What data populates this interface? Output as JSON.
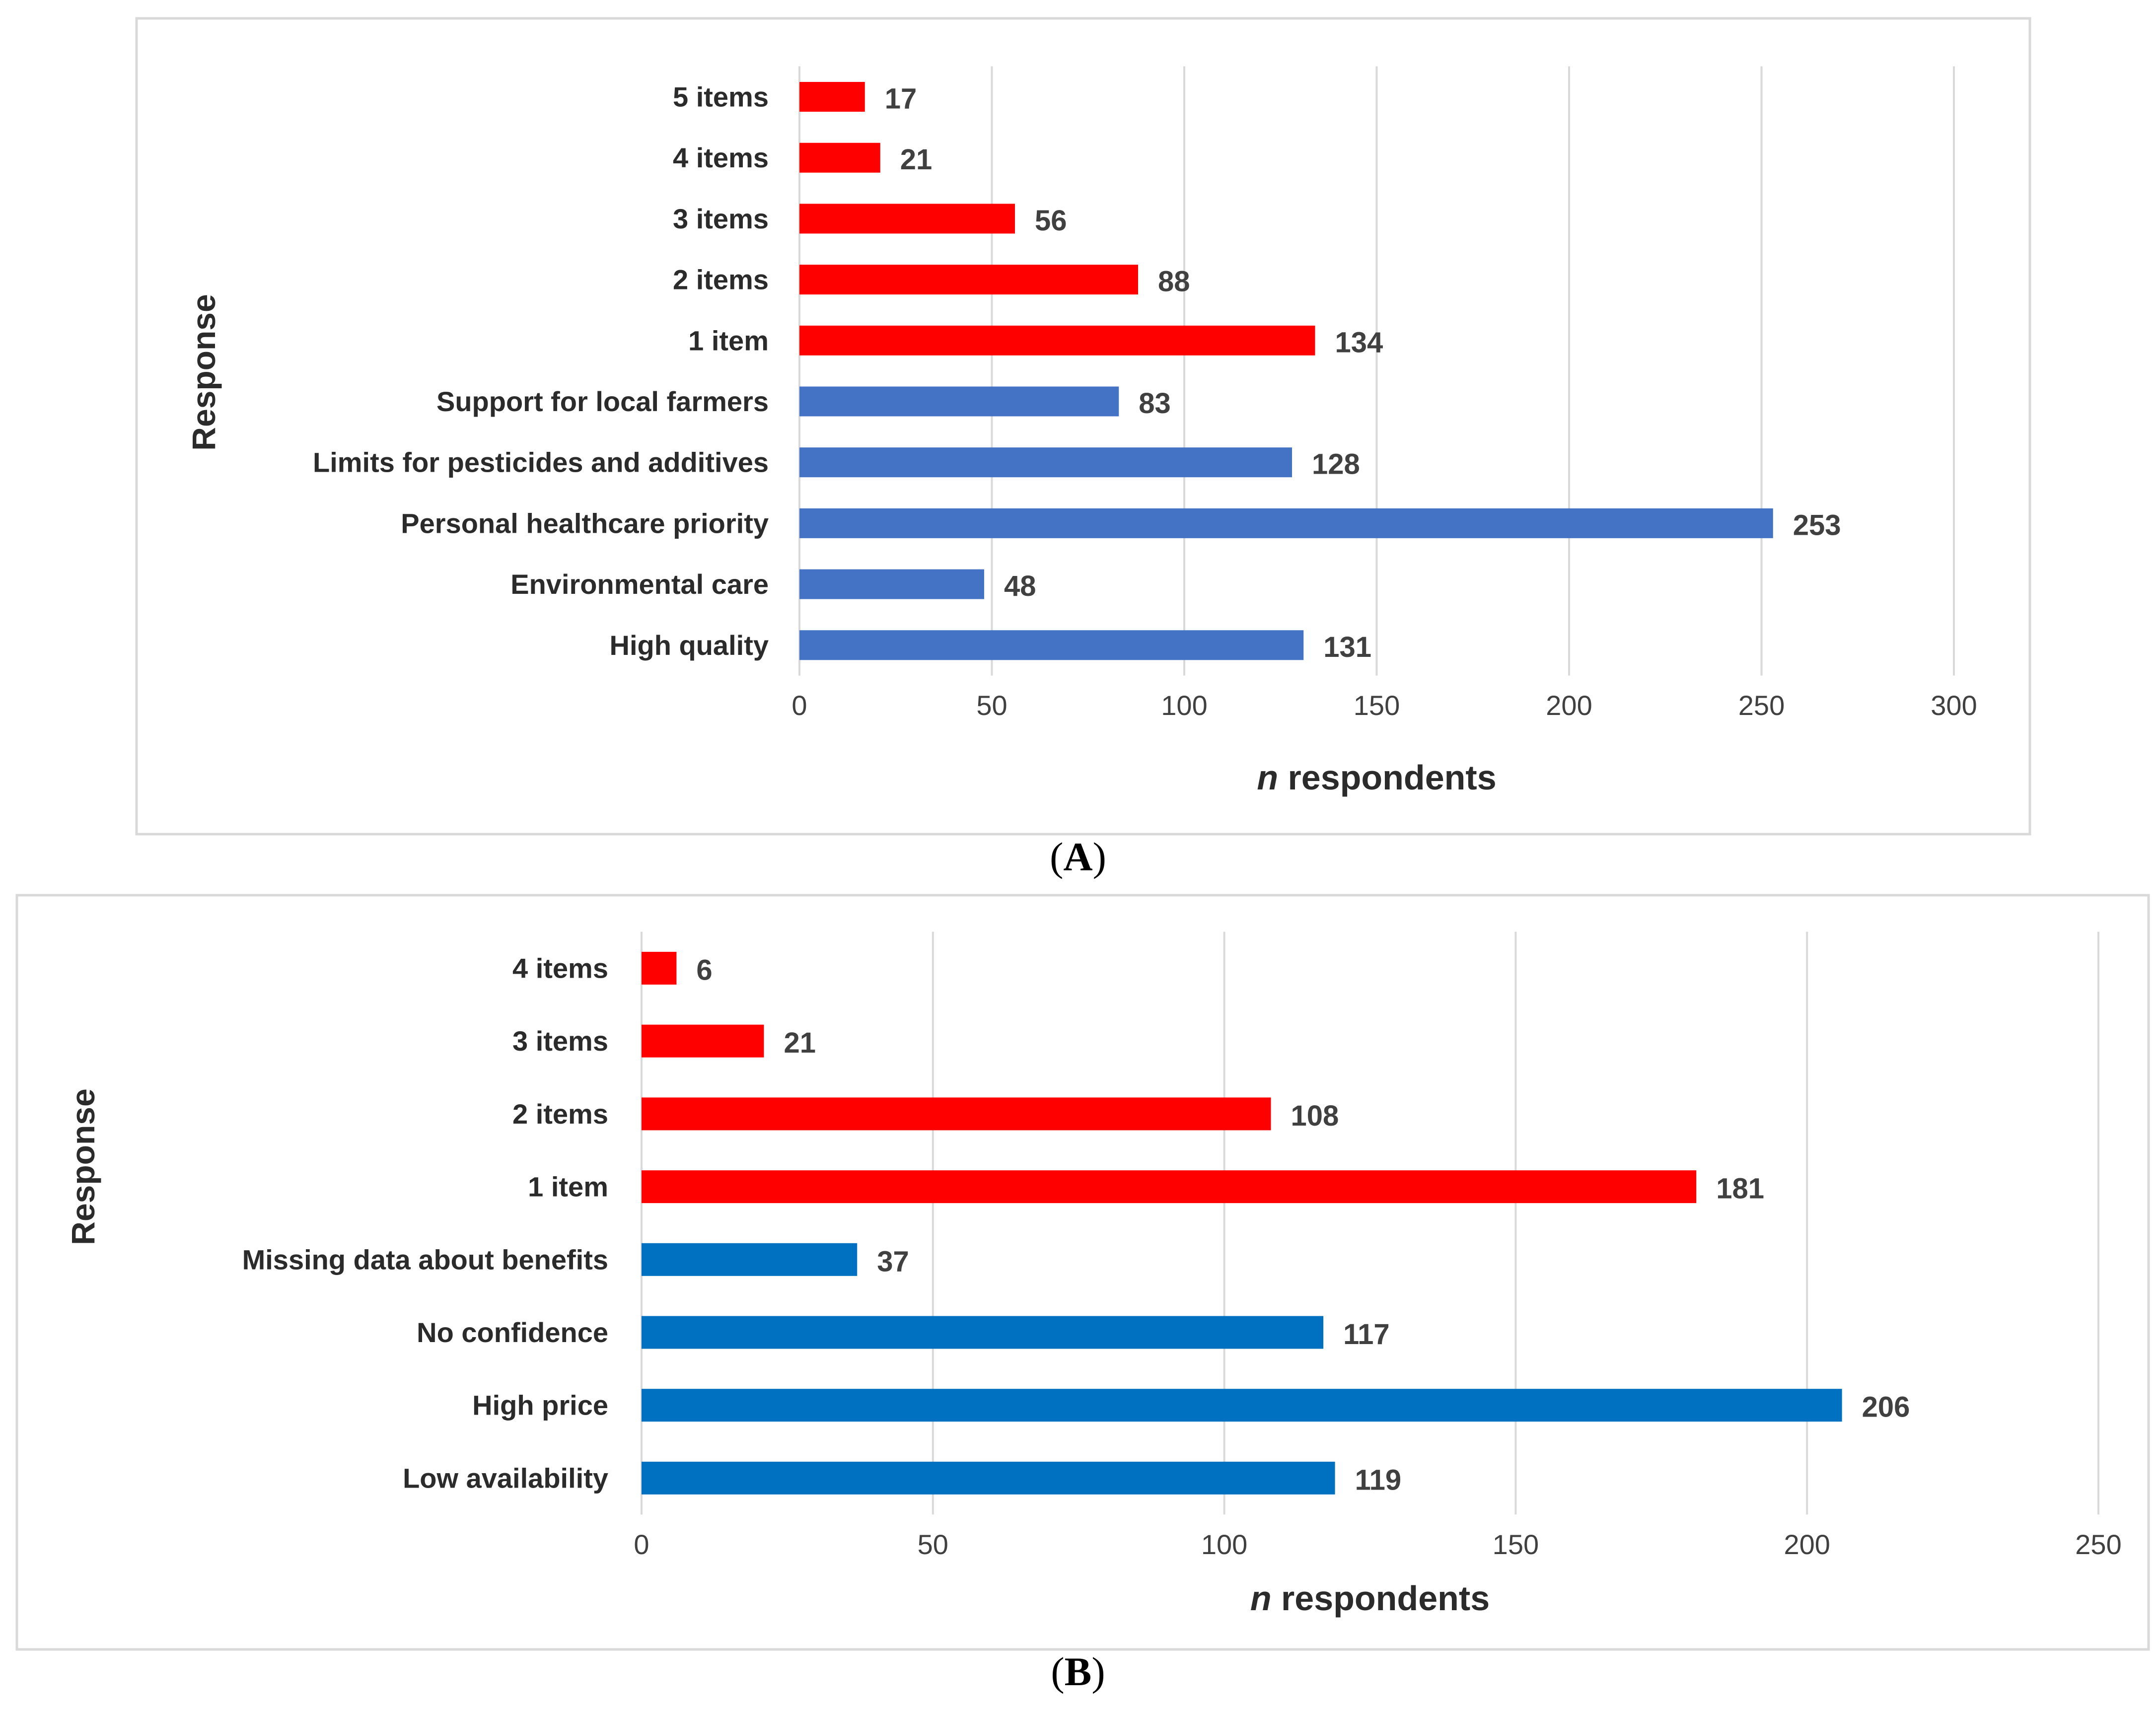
{
  "chart_data": [
    {
      "type": "bar",
      "orientation": "horizontal",
      "panel_label": "A",
      "categories": [
        "5 items",
        "4 items",
        "3 items",
        "2 items",
        "1 item",
        "Support for local farmers",
        "Limits for pesticides and additives",
        "Personal healthcare priority",
        "Environmental care",
        "High quality"
      ],
      "values": [
        17,
        21,
        56,
        88,
        134,
        83,
        128,
        253,
        48,
        131
      ],
      "colors": [
        "#ff0000",
        "#ff0000",
        "#ff0000",
        "#ff0000",
        "#ff0000",
        "#4472c4",
        "#4472c4",
        "#4472c4",
        "#4472c4",
        "#4472c4"
      ],
      "xlabel_italic": "n",
      "xlabel_rest": " respondents",
      "ylabel": "Response",
      "xlim": [
        0,
        300
      ],
      "xticks": [
        0,
        50,
        100,
        150,
        200,
        250,
        300
      ],
      "grid": true
    },
    {
      "type": "bar",
      "orientation": "horizontal",
      "panel_label": "B",
      "categories": [
        "4 items",
        "3 items",
        "2 items",
        "1 item",
        "Missing data about benefits",
        "No confidence",
        "High price",
        "Low availability"
      ],
      "values": [
        6,
        21,
        108,
        181,
        37,
        117,
        206,
        119
      ],
      "colors": [
        "#ff0000",
        "#ff0000",
        "#ff0000",
        "#ff0000",
        "#0070c0",
        "#0070c0",
        "#0070c0",
        "#0070c0"
      ],
      "xlabel_italic": "n",
      "xlabel_rest": " respondents",
      "ylabel": "Response",
      "xlim": [
        0,
        250
      ],
      "xticks": [
        0,
        50,
        100,
        150,
        200,
        250
      ],
      "grid": true
    }
  ]
}
